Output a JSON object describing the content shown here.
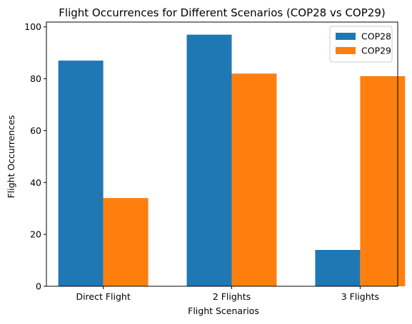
{
  "chart_data": {
    "type": "bar",
    "title": "Flight Occurrences for Different Scenarios (COP28 vs COP29)",
    "xlabel": "Flight Scenarios",
    "ylabel": "Flight Occurrences",
    "categories": [
      "Direct Flight",
      "2 Flights",
      "3 Flights"
    ],
    "series": [
      {
        "name": "COP28",
        "color": "#1f77b4",
        "values": [
          87,
          97,
          14
        ]
      },
      {
        "name": "COP29",
        "color": "#ff7f0e",
        "values": [
          34,
          82,
          81
        ]
      }
    ],
    "ylim": [
      0,
      101.85
    ],
    "yticks": [
      0,
      20,
      40,
      60,
      80,
      100
    ],
    "ytick_labels": [
      "0",
      "20",
      "40",
      "60",
      "80",
      "100"
    ],
    "grid": false,
    "legend_position": "top-right"
  }
}
